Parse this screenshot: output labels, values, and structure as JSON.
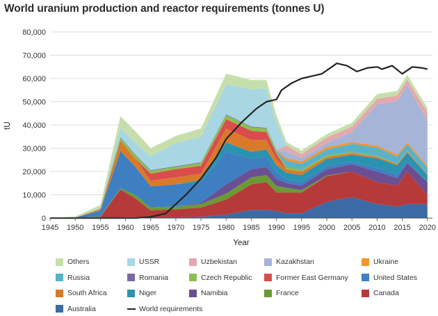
{
  "title": "World uranium production and reactor requirements (tonnes U)",
  "chart_data": {
    "type": "area",
    "stacked": true,
    "xlabel": "Year",
    "ylabel": "tU",
    "xlim": [
      1945,
      2021
    ],
    "ylim": [
      0,
      80000
    ],
    "grid": "horizontal",
    "legend_position": "bottom",
    "x_ticks": [
      "1945",
      "1950",
      "1955",
      "1960",
      "1965",
      "1970",
      "1975",
      "1980",
      "1985",
      "1990",
      "1995",
      "2000",
      "2005",
      "2010",
      "2015",
      "2020"
    ],
    "y_ticks": [
      "0",
      "10,000",
      "20,000",
      "30,000",
      "40,000",
      "50,000",
      "60,000",
      "70,000",
      "80,000"
    ],
    "years": [
      1945,
      1950,
      1955,
      1959,
      1962,
      1965,
      1970,
      1975,
      1980,
      1985,
      1988,
      1990,
      1992,
      1995,
      2000,
      2005,
      2010,
      2014,
      2016,
      2020
    ],
    "series": [
      {
        "name": "Australia",
        "color": "#3c6aa4",
        "values": [
          0,
          0,
          50,
          300,
          400,
          300,
          300,
          500,
          1500,
          3500,
          3500,
          3000,
          2000,
          2000,
          7000,
          9000,
          6000,
          5000,
          6000,
          6000
        ]
      },
      {
        "name": "Canada",
        "color": "#b63a3a",
        "values": [
          0,
          0,
          500,
          12000,
          8000,
          3000,
          3500,
          4000,
          6500,
          11000,
          12000,
          8000,
          9000,
          9000,
          11000,
          11000,
          9500,
          9000,
          14000,
          4000
        ]
      },
      {
        "name": "France",
        "color": "#6b9a35",
        "values": [
          0,
          0,
          200,
          500,
          1500,
          1300,
          1200,
          1500,
          2500,
          3000,
          3000,
          2800,
          2000,
          1000,
          300,
          0,
          0,
          0,
          0,
          0
        ]
      },
      {
        "name": "Namibia",
        "color": "#6a4f93",
        "values": [
          0,
          0,
          0,
          0,
          0,
          0,
          0,
          500,
          4000,
          3500,
          3500,
          3000,
          2000,
          2000,
          2700,
          3100,
          4500,
          3200,
          3600,
          5400
        ]
      },
      {
        "name": "United States",
        "color": "#3d7fc1",
        "values": [
          0,
          200,
          2500,
          16000,
          12000,
          9000,
          9500,
          9000,
          14000,
          4500,
          4500,
          3000,
          1500,
          1500,
          1500,
          1000,
          1500,
          1500,
          1000,
          100
        ]
      },
      {
        "name": "Niger",
        "color": "#2a93b0",
        "values": [
          0,
          0,
          0,
          0,
          0,
          0,
          0,
          1000,
          4000,
          3000,
          3000,
          2800,
          3000,
          3000,
          2900,
          3100,
          4200,
          4000,
          3500,
          3000
        ]
      },
      {
        "name": "South Africa",
        "color": "#d97a2b",
        "values": [
          0,
          0,
          500,
          4500,
          3500,
          2500,
          3000,
          2500,
          6000,
          5000,
          4000,
          2500,
          1500,
          1500,
          900,
          700,
          600,
          500,
          500,
          300
        ]
      },
      {
        "name": "Former East Germany",
        "color": "#d94d4d",
        "values": [
          0,
          0,
          0,
          0,
          0,
          3000,
          3500,
          3500,
          4000,
          4000,
          3500,
          2500,
          0,
          0,
          0,
          0,
          0,
          0,
          0,
          0
        ]
      },
      {
        "name": "Czech Republic",
        "color": "#8cbf4f",
        "values": [
          0,
          0,
          200,
          1200,
          1500,
          1200,
          1000,
          1200,
          1800,
          1500,
          1500,
          1300,
          1000,
          700,
          600,
          500,
          300,
          200,
          100,
          50
        ]
      },
      {
        "name": "Romania",
        "color": "#7c6aa8",
        "values": [
          0,
          0,
          200,
          300,
          300,
          300,
          300,
          300,
          300,
          300,
          300,
          300,
          200,
          100,
          100,
          100,
          100,
          50,
          50,
          0
        ]
      },
      {
        "name": "Russia",
        "color": "#58b3c9",
        "values": [
          0,
          0,
          0,
          0,
          0,
          0,
          0,
          0,
          0,
          0,
          0,
          0,
          2500,
          2500,
          2500,
          3400,
          3600,
          2900,
          3000,
          2800
        ]
      },
      {
        "name": "Ukraine",
        "color": "#f0952f",
        "values": [
          0,
          0,
          0,
          0,
          0,
          0,
          0,
          0,
          0,
          0,
          0,
          0,
          1000,
          1000,
          1000,
          800,
          800,
          900,
          800,
          700
        ]
      },
      {
        "name": "Kazakhstan",
        "color": "#a6b4d8",
        "values": [
          0,
          0,
          0,
          0,
          0,
          0,
          0,
          0,
          0,
          0,
          0,
          0,
          2800,
          1600,
          1700,
          4300,
          17800,
          23000,
          24600,
          19500
        ]
      },
      {
        "name": "Uzbekistan",
        "color": "#e3a9ad",
        "values": [
          0,
          0,
          0,
          0,
          0,
          0,
          0,
          0,
          0,
          0,
          0,
          0,
          2700,
          1600,
          2400,
          2300,
          2400,
          2400,
          2400,
          3500
        ]
      },
      {
        "name": "USSR",
        "color": "#a9d6e3",
        "values": [
          0,
          0,
          0,
          4000,
          5000,
          6000,
          10000,
          11000,
          13000,
          16000,
          17000,
          12000,
          0,
          0,
          0,
          0,
          0,
          0,
          0,
          0
        ]
      },
      {
        "name": "Others",
        "color": "#c6dfaa",
        "values": [
          0,
          500,
          1500,
          5000,
          5000,
          3500,
          3000,
          3500,
          4500,
          4000,
          3500,
          3000,
          1500,
          1500,
          1500,
          1700,
          2000,
          2000,
          2000,
          2000
        ]
      }
    ],
    "requirements": {
      "name": "World requirements",
      "color": "#222222",
      "points": [
        [
          1945,
          0
        ],
        [
          1962,
          0
        ],
        [
          1965,
          500
        ],
        [
          1968,
          2000
        ],
        [
          1970,
          6000
        ],
        [
          1972,
          10000
        ],
        [
          1975,
          17000
        ],
        [
          1978,
          26000
        ],
        [
          1980,
          34000
        ],
        [
          1983,
          41000
        ],
        [
          1986,
          47000
        ],
        [
          1988,
          50000
        ],
        [
          1990,
          51000
        ],
        [
          1991,
          55000
        ],
        [
          1993,
          58000
        ],
        [
          1995,
          60000
        ],
        [
          1997,
          61000
        ],
        [
          1999,
          62000
        ],
        [
          2001,
          65000
        ],
        [
          2002,
          66500
        ],
        [
          2004,
          65500
        ],
        [
          2006,
          63000
        ],
        [
          2008,
          64500
        ],
        [
          2010,
          65000
        ],
        [
          2011,
          64000
        ],
        [
          2013,
          65500
        ],
        [
          2015,
          62000
        ],
        [
          2017,
          65000
        ],
        [
          2019,
          64500
        ],
        [
          2020,
          64000
        ]
      ]
    },
    "legend": [
      [
        "Others",
        "USSR",
        "Uzbekistan",
        "Kazakhstan",
        "Ukraine"
      ],
      [
        "Russia",
        "Romania",
        "Czech Republic",
        "Former East Germany",
        "United States"
      ],
      [
        "South Africa",
        "Niger",
        "Namibia",
        "France",
        "Canada"
      ],
      [
        "Australia",
        "World requirements"
      ]
    ]
  }
}
